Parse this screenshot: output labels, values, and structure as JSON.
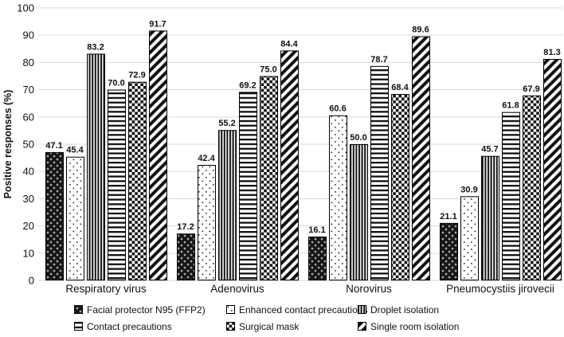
{
  "chart_data": {
    "type": "bar",
    "title": "",
    "xlabel": "",
    "ylabel": "Positive responses (%)",
    "ylim": [
      0,
      100
    ],
    "yticks": [
      0,
      10,
      20,
      30,
      40,
      50,
      60,
      70,
      80,
      90,
      100
    ],
    "grid": true,
    "legend_position": "bottom",
    "value_label_decimals": 1,
    "categories": [
      "Respiratory virus",
      "Adenovirus",
      "Norovirus",
      "Pneumocystiis jirovecii"
    ],
    "series": [
      {
        "name": "Facial protector N95 (FFP2)",
        "pattern": "n95-diamond",
        "values": [
          47.1,
          17.2,
          16.1,
          21.1
        ]
      },
      {
        "name": "Enhanced contact precautions",
        "pattern": "dots",
        "values": [
          45.4,
          42.4,
          60.6,
          30.9
        ]
      },
      {
        "name": "Droplet isolation",
        "pattern": "vertical-stripes",
        "values": [
          83.2,
          55.2,
          50.0,
          45.7
        ]
      },
      {
        "name": "Contact precautions",
        "pattern": "horizontal-stripes",
        "values": [
          70.0,
          69.2,
          78.7,
          61.8
        ]
      },
      {
        "name": "Surgical mask",
        "pattern": "checkerboard",
        "values": [
          72.9,
          75.0,
          68.4,
          67.9
        ]
      },
      {
        "name": "Single room isolation",
        "pattern": "diagonal-stripes",
        "values": [
          91.7,
          84.4,
          89.6,
          81.3
        ]
      }
    ],
    "colors": {
      "pattern_ink": "#111111",
      "bar_stroke": "#000000",
      "grid": "#d9d9d9",
      "text": "#111111",
      "background": "#ffffff"
    }
  }
}
